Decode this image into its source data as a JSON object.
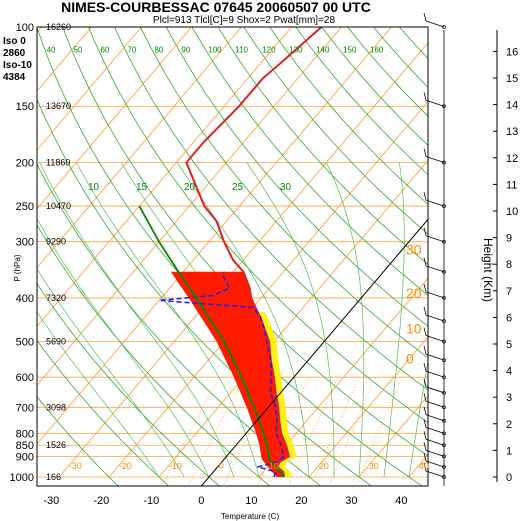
{
  "chart_data": {
    "type": "line",
    "title": "NIMES-COURBESSAC 07645 20060507 00 UTC",
    "subtitle": "Plcl=913 Tlcl[C]=9 Shox=2 Pwat[mm]=28",
    "xlabel": "Temperature (C)",
    "ylabel": "P (hPa)",
    "y2label": "Height (Km)",
    "xlim": [
      -35,
      45
    ],
    "ylim": [
      1050,
      100
    ],
    "y_scale": "log",
    "x_ticks": [
      "-30",
      "-20",
      "-10",
      "0",
      "10",
      "20",
      "30",
      "40"
    ],
    "pressure_levels": [
      {
        "p": 100,
        "label": "100",
        "gph": "16260"
      },
      {
        "p": 150,
        "label": "150",
        "gph": "13670"
      },
      {
        "p": 200,
        "label": "200",
        "gph": "11860"
      },
      {
        "p": 250,
        "label": "250",
        "gph": "10470"
      },
      {
        "p": 300,
        "label": "300",
        "gph": "9290"
      },
      {
        "p": 400,
        "label": "400",
        "gph": "7320"
      },
      {
        "p": 500,
        "label": "500",
        "gph": "5690"
      },
      {
        "p": 600,
        "label": "600",
        "gph": ""
      },
      {
        "p": 700,
        "label": "700",
        "gph": "3098"
      },
      {
        "p": 800,
        "label": "800",
        "gph": ""
      },
      {
        "p": 850,
        "label": "850",
        "gph": "1526"
      },
      {
        "p": 900,
        "label": "900",
        "gph": ""
      },
      {
        "p": 1000,
        "label": "1000",
        "gph": "166"
      }
    ],
    "height_ticks": [
      "0",
      "1",
      "2",
      "3",
      "4",
      "5",
      "6",
      "7",
      "8",
      "9",
      "10",
      "11",
      "12",
      "13",
      "14",
      "15",
      "16"
    ],
    "freezing_levels": [
      {
        "label": "Iso 0",
        "value": "2860"
      },
      {
        "label": "Iso-10",
        "value": "4384"
      }
    ],
    "isotherm_labels": [
      "-30",
      "-20",
      "-10",
      "0",
      "10",
      "20",
      "30",
      "40"
    ],
    "dry_adiabat_labels": [
      "40",
      "50",
      "60",
      "70",
      "80",
      "90",
      "100",
      "110",
      "120",
      "130",
      "140",
      "150",
      "160"
    ],
    "mixing_ratio_labels": [
      "10",
      "15",
      "20",
      "25",
      "30"
    ],
    "series": [
      {
        "name": "temperature",
        "color": "#dd2222",
        "points": [
          [
            1000,
            15
          ],
          [
            975,
            14
          ],
          [
            950,
            12
          ],
          [
            925,
            11.5
          ],
          [
            900,
            12.5
          ],
          [
            850,
            10
          ],
          [
            800,
            7
          ],
          [
            750,
            4.5
          ],
          [
            700,
            2
          ],
          [
            650,
            -1
          ],
          [
            600,
            -4
          ],
          [
            550,
            -7.5
          ],
          [
            500,
            -11
          ],
          [
            450,
            -16
          ],
          [
            400,
            -22
          ],
          [
            380,
            -24
          ],
          [
            350,
            -28
          ],
          [
            330,
            -32
          ],
          [
            300,
            -37
          ],
          [
            270,
            -42
          ],
          [
            250,
            -47
          ],
          [
            200,
            -58
          ],
          [
            180,
            -58
          ],
          [
            150,
            -57
          ],
          [
            130,
            -57
          ],
          [
            120,
            -56
          ],
          [
            100,
            -54
          ]
        ]
      },
      {
        "name": "dewpoint",
        "color": "#2222dd",
        "points": [
          [
            1000,
            13
          ],
          [
            975,
            12.5
          ],
          [
            960,
            10
          ],
          [
            950,
            8
          ],
          [
            925,
            11
          ],
          [
            900,
            11.5
          ],
          [
            850,
            9
          ],
          [
            800,
            6
          ],
          [
            750,
            4
          ],
          [
            700,
            1.5
          ],
          [
            650,
            -2
          ],
          [
            600,
            -4.5
          ],
          [
            550,
            -7.5
          ],
          [
            500,
            -11.5
          ],
          [
            470,
            -14
          ],
          [
            440,
            -17
          ],
          [
            420,
            -20
          ],
          [
            405,
            -40
          ],
          [
            395,
            -30
          ],
          [
            380,
            -28
          ],
          [
            360,
            -31
          ],
          [
            350,
            -32
          ]
        ]
      },
      {
        "name": "parcel",
        "color": "#008800",
        "points": [
          [
            1000,
            15
          ],
          [
            913,
            9
          ],
          [
            850,
            6.2
          ],
          [
            800,
            3.5
          ],
          [
            700,
            -2.8
          ],
          [
            600,
            -10.5
          ],
          [
            500,
            -20
          ],
          [
            400,
            -33
          ],
          [
            350,
            -41
          ],
          [
            300,
            -50
          ],
          [
            250,
            -60
          ]
        ]
      }
    ]
  }
}
